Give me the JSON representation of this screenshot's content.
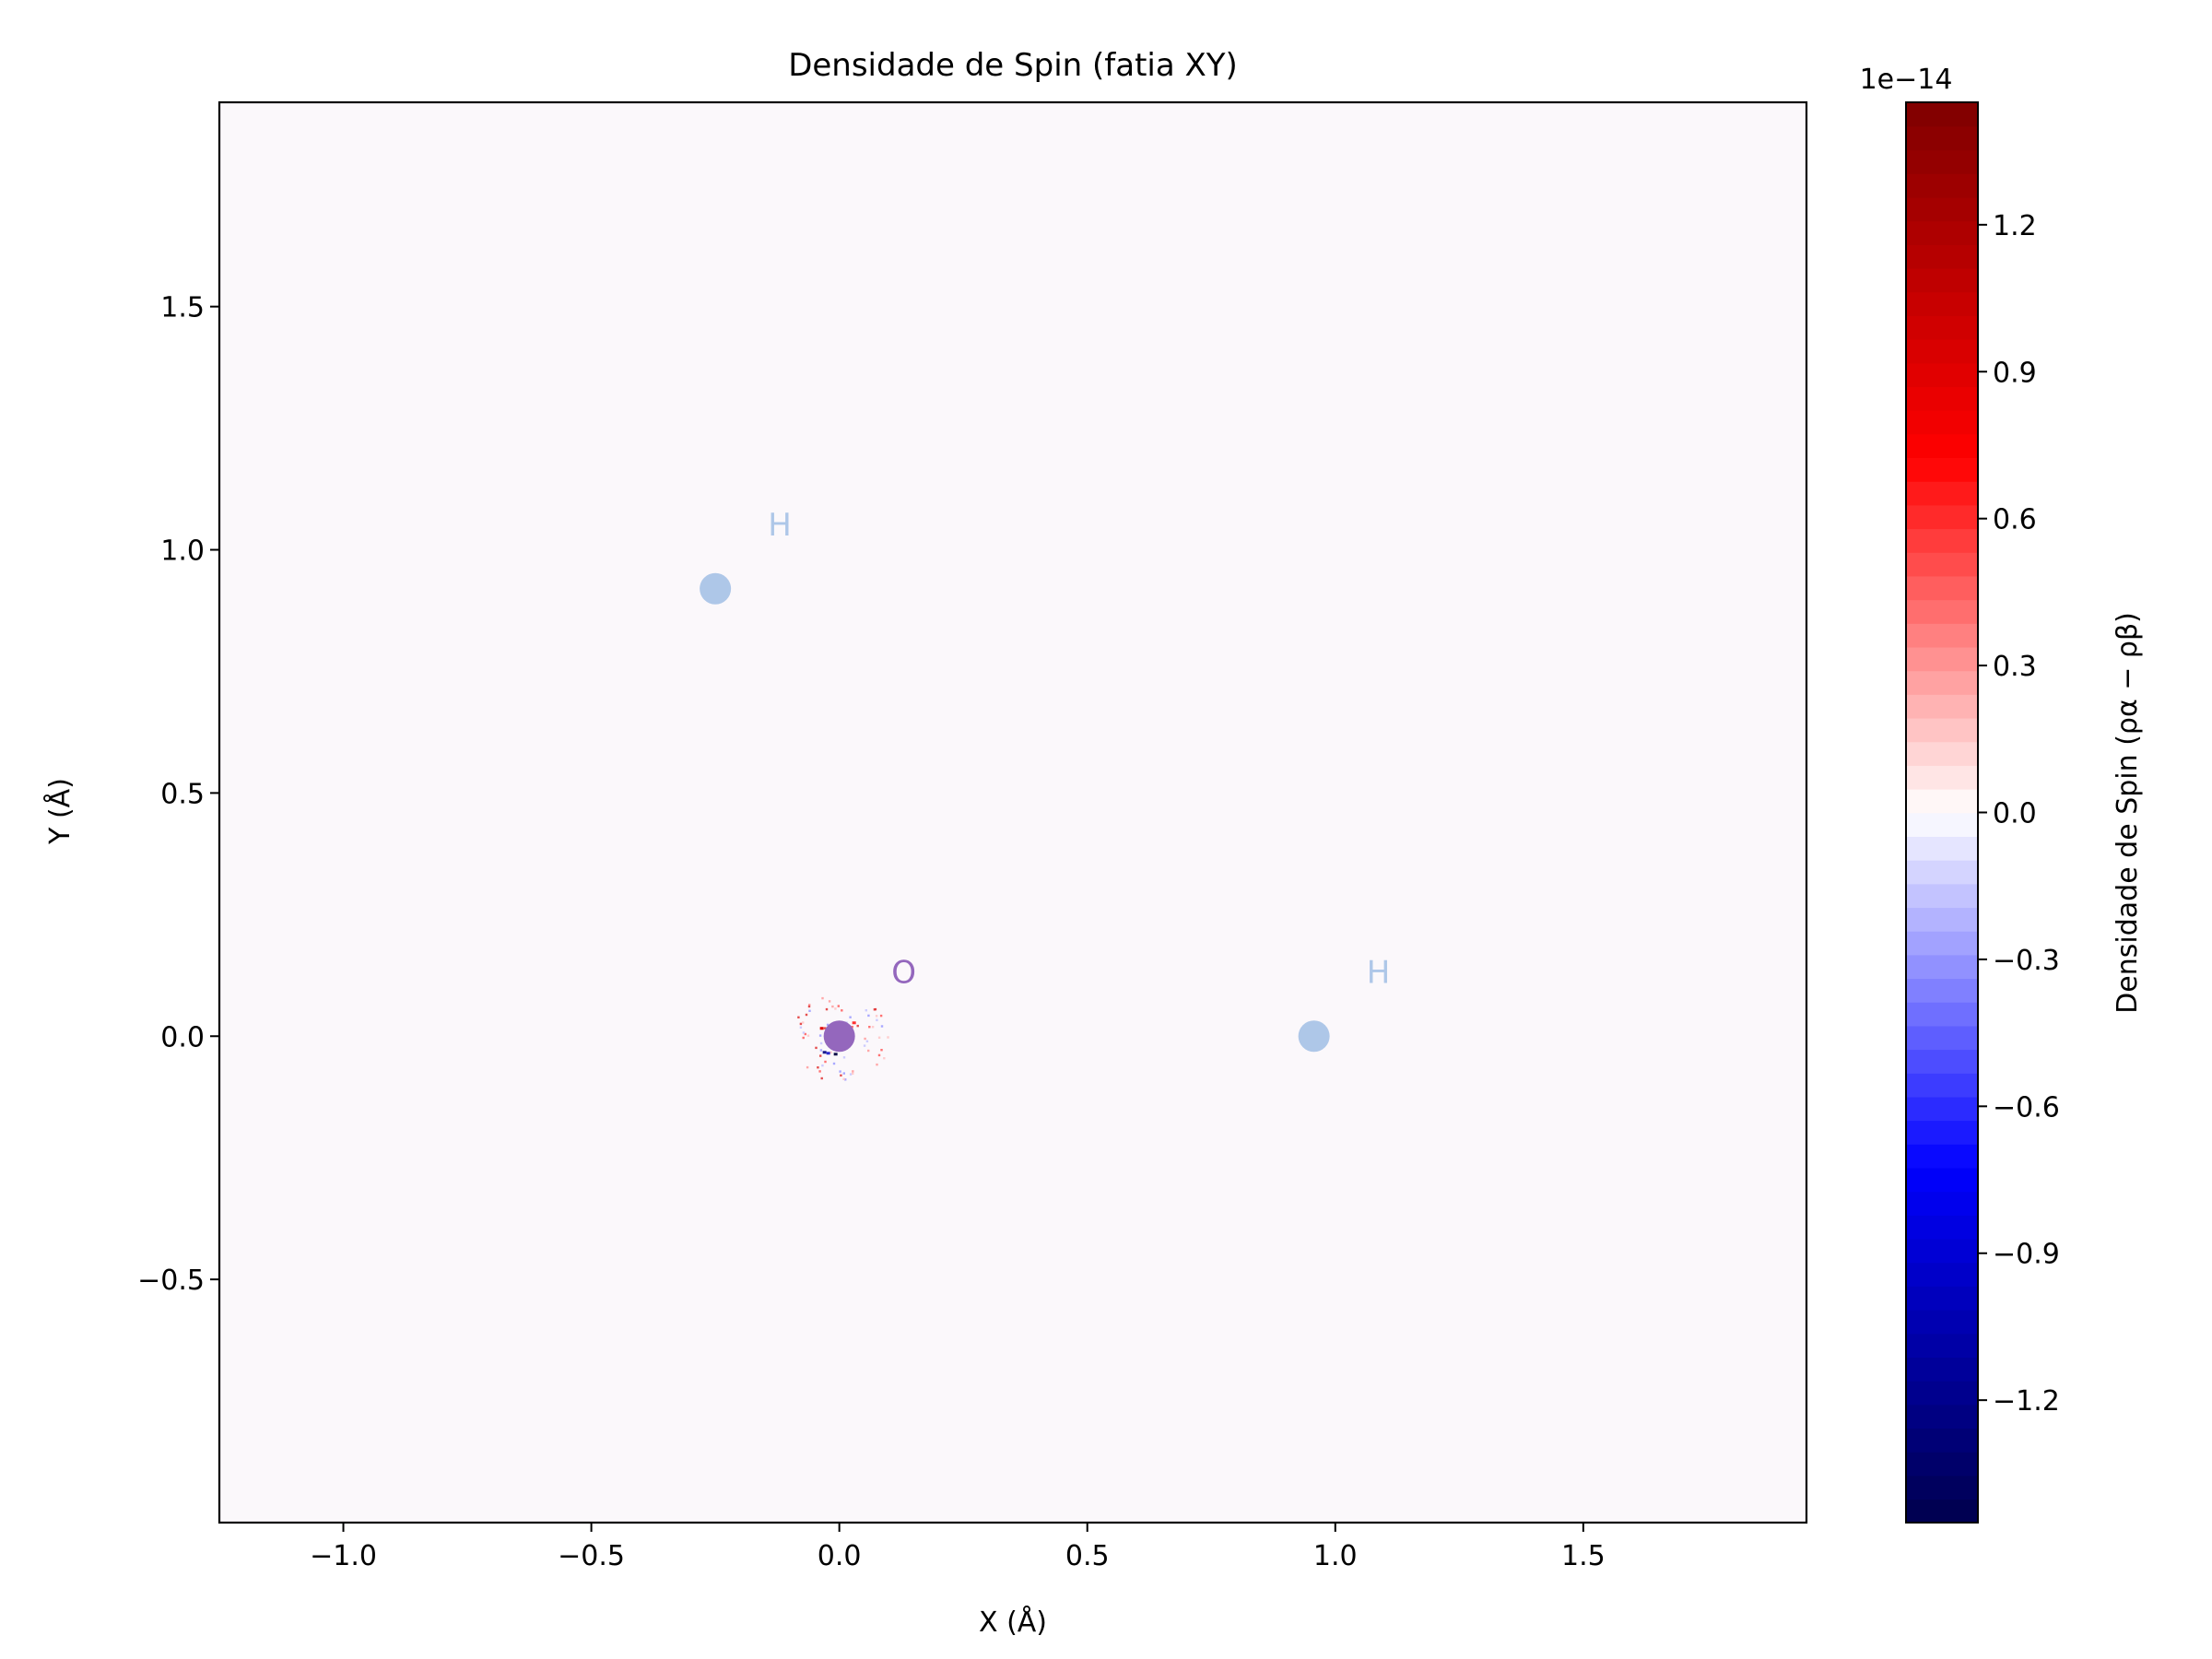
{
  "chart_data": {
    "type": "heatmap",
    "title": "Densidade de Spin (fatia XY)",
    "xlabel": "X (Å)",
    "ylabel": "Y (Å)",
    "xlim": [
      -1.25,
      1.95
    ],
    "ylim": [
      -1.0,
      1.92
    ],
    "x_ticks": [
      -1.0,
      -0.5,
      0.0,
      0.5,
      1.0,
      1.5
    ],
    "x_tick_labels": [
      "−1.0",
      "−0.5",
      "0.0",
      "0.5",
      "1.0",
      "1.5"
    ],
    "y_ticks": [
      -0.5,
      0.0,
      0.5,
      1.0,
      1.5
    ],
    "y_tick_labels": [
      "−0.5",
      "0.0",
      "0.5",
      "1.0",
      "1.5"
    ],
    "grid": false,
    "field_background": "#fbf8fb",
    "atoms": [
      {
        "label": "O",
        "x": 0.0,
        "y": 0.0,
        "color": "#9467bd",
        "label_dx": 0.13,
        "label_dy": 0.13
      },
      {
        "label": "H",
        "x": 0.957,
        "y": 0.0,
        "color": "#aec7e8",
        "label_dx": 0.13,
        "label_dy": 0.13
      },
      {
        "label": "H",
        "x": -0.25,
        "y": 0.92,
        "color": "#aec7e8",
        "label_dx": 0.13,
        "label_dy": 0.13
      }
    ],
    "noise_cluster": {
      "x": 0.0,
      "y": 0.0,
      "radius": 0.1
    },
    "colorbar": {
      "label": "Densidade de Spin (ρα − ρβ)",
      "scale_label": "1e−14",
      "colormap": "seismic",
      "vmin": -1.45,
      "vmax": 1.45,
      "levels": 60,
      "ticks": [
        -1.2,
        -0.9,
        -0.6,
        -0.3,
        0.0,
        0.3,
        0.6,
        0.9,
        1.2
      ],
      "tick_labels": [
        "−1.2",
        "−0.9",
        "−0.6",
        "−0.3",
        "0.0",
        "0.3",
        "0.6",
        "0.9",
        "1.2"
      ]
    }
  }
}
